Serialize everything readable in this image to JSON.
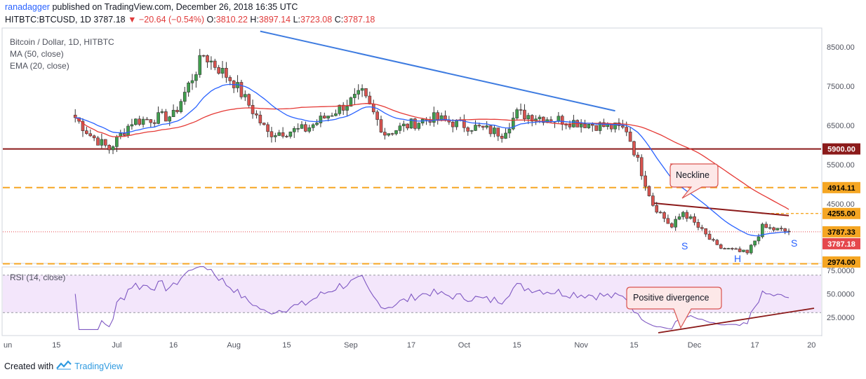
{
  "header": {
    "author": "ranadagger",
    "published_text": "published on TradingView.com, December 26, 2018 16:35 UTC",
    "symbol": "HITBTC:BTCUSD, 1D",
    "last": "3787.18",
    "change": "▼ −20.64 (−0.54%)",
    "o_label": "O:",
    "o_value": "3810.22",
    "h_label": "H:",
    "h_value": "3897.14",
    "l_label": "L:",
    "l_value": "3723.08",
    "c_label": "C:",
    "c_value": "3787.18"
  },
  "legend": {
    "title": "Bitcoin / Dollar, 1D, HITBTC",
    "ma": "MA (50, close)",
    "ema": "EMA (20, close)",
    "rsi": "RSI (14, close)"
  },
  "annotations": {
    "neckline": "Neckline",
    "positive_divergence": "Positive divergence",
    "s_left": "S",
    "head": "H",
    "s_right": "S"
  },
  "price_axis": [
    "8500.00",
    "7500.00",
    "6500.00",
    "5500.00",
    "4500.00"
  ],
  "price_badges": [
    {
      "text": "5900.00",
      "bg": "#8b1a1a",
      "fg": "#ffffff"
    },
    {
      "text": "4914.11",
      "bg": "#f5a623",
      "fg": "#000000"
    },
    {
      "text": "4255.00",
      "bg": "#f5a623",
      "fg": "#000000"
    },
    {
      "text": "3787.33",
      "bg": "#f5a623",
      "fg": "#000000"
    },
    {
      "text": "3787.18",
      "bg": "#e5484d",
      "fg": "#ffffff"
    },
    {
      "text": "2974.00",
      "bg": "#f5a623",
      "fg": "#000000"
    }
  ],
  "rsi_axis": [
    "75.0000",
    "50.0000",
    "25.0000"
  ],
  "time_axis": [
    "un",
    "15",
    "Jul",
    "16",
    "Aug",
    "15",
    "Sep",
    "17",
    "Oct",
    "15",
    "Nov",
    "15",
    "Dec",
    "17",
    "20"
  ],
  "footer": {
    "created_with": "Created with",
    "brand": "TradingView"
  },
  "colors": {
    "up": "#26a69a",
    "down": "#ef5350",
    "candle_body_up": "#3f9e4d",
    "candle_body_down": "#d9534f",
    "ma": "#e53935",
    "ema": "#2962ff",
    "trend": "#3d7be0",
    "support": "#8b1a1a",
    "dashed": "#f5a623",
    "neckline": "#8b1a1a",
    "rsi": "#7e57c2",
    "rsi_band": "#f3e6fb"
  },
  "chart_data": {
    "type": "candlestick",
    "title": "Bitcoin / Dollar, 1D, HITBTC",
    "y_range": [
      2974,
      8800
    ],
    "horizontal_levels": [
      5900.0,
      4914.11,
      4255.0,
      3787.33,
      2974.0
    ],
    "rsi_range": [
      0,
      100
    ],
    "rsi_levels": [
      70,
      30
    ],
    "close_path": [
      {
        "date": "2018-06-20",
        "close": 6700
      },
      {
        "date": "2018-06-24",
        "close": 6250
      },
      {
        "date": "2018-06-29",
        "close": 5900
      },
      {
        "date": "2018-07-05",
        "close": 6600
      },
      {
        "date": "2018-07-16",
        "close": 6750
      },
      {
        "date": "2018-07-24",
        "close": 8300
      },
      {
        "date": "2018-08-01",
        "close": 7600
      },
      {
        "date": "2018-08-10",
        "close": 6300
      },
      {
        "date": "2018-08-20",
        "close": 6400
      },
      {
        "date": "2018-09-04",
        "close": 7300
      },
      {
        "date": "2018-09-10",
        "close": 6300
      },
      {
        "date": "2018-09-22",
        "close": 6700
      },
      {
        "date": "2018-10-11",
        "close": 6300
      },
      {
        "date": "2018-10-15",
        "close": 6800
      },
      {
        "date": "2018-11-13",
        "close": 6400
      },
      {
        "date": "2018-11-20",
        "close": 4500
      },
      {
        "date": "2018-11-25",
        "close": 3900
      },
      {
        "date": "2018-11-28",
        "close": 4300
      },
      {
        "date": "2018-12-07",
        "close": 3400
      },
      {
        "date": "2018-12-15",
        "close": 3230
      },
      {
        "date": "2018-12-19",
        "close": 3900
      },
      {
        "date": "2018-12-26",
        "close": 3787.18
      }
    ]
  }
}
